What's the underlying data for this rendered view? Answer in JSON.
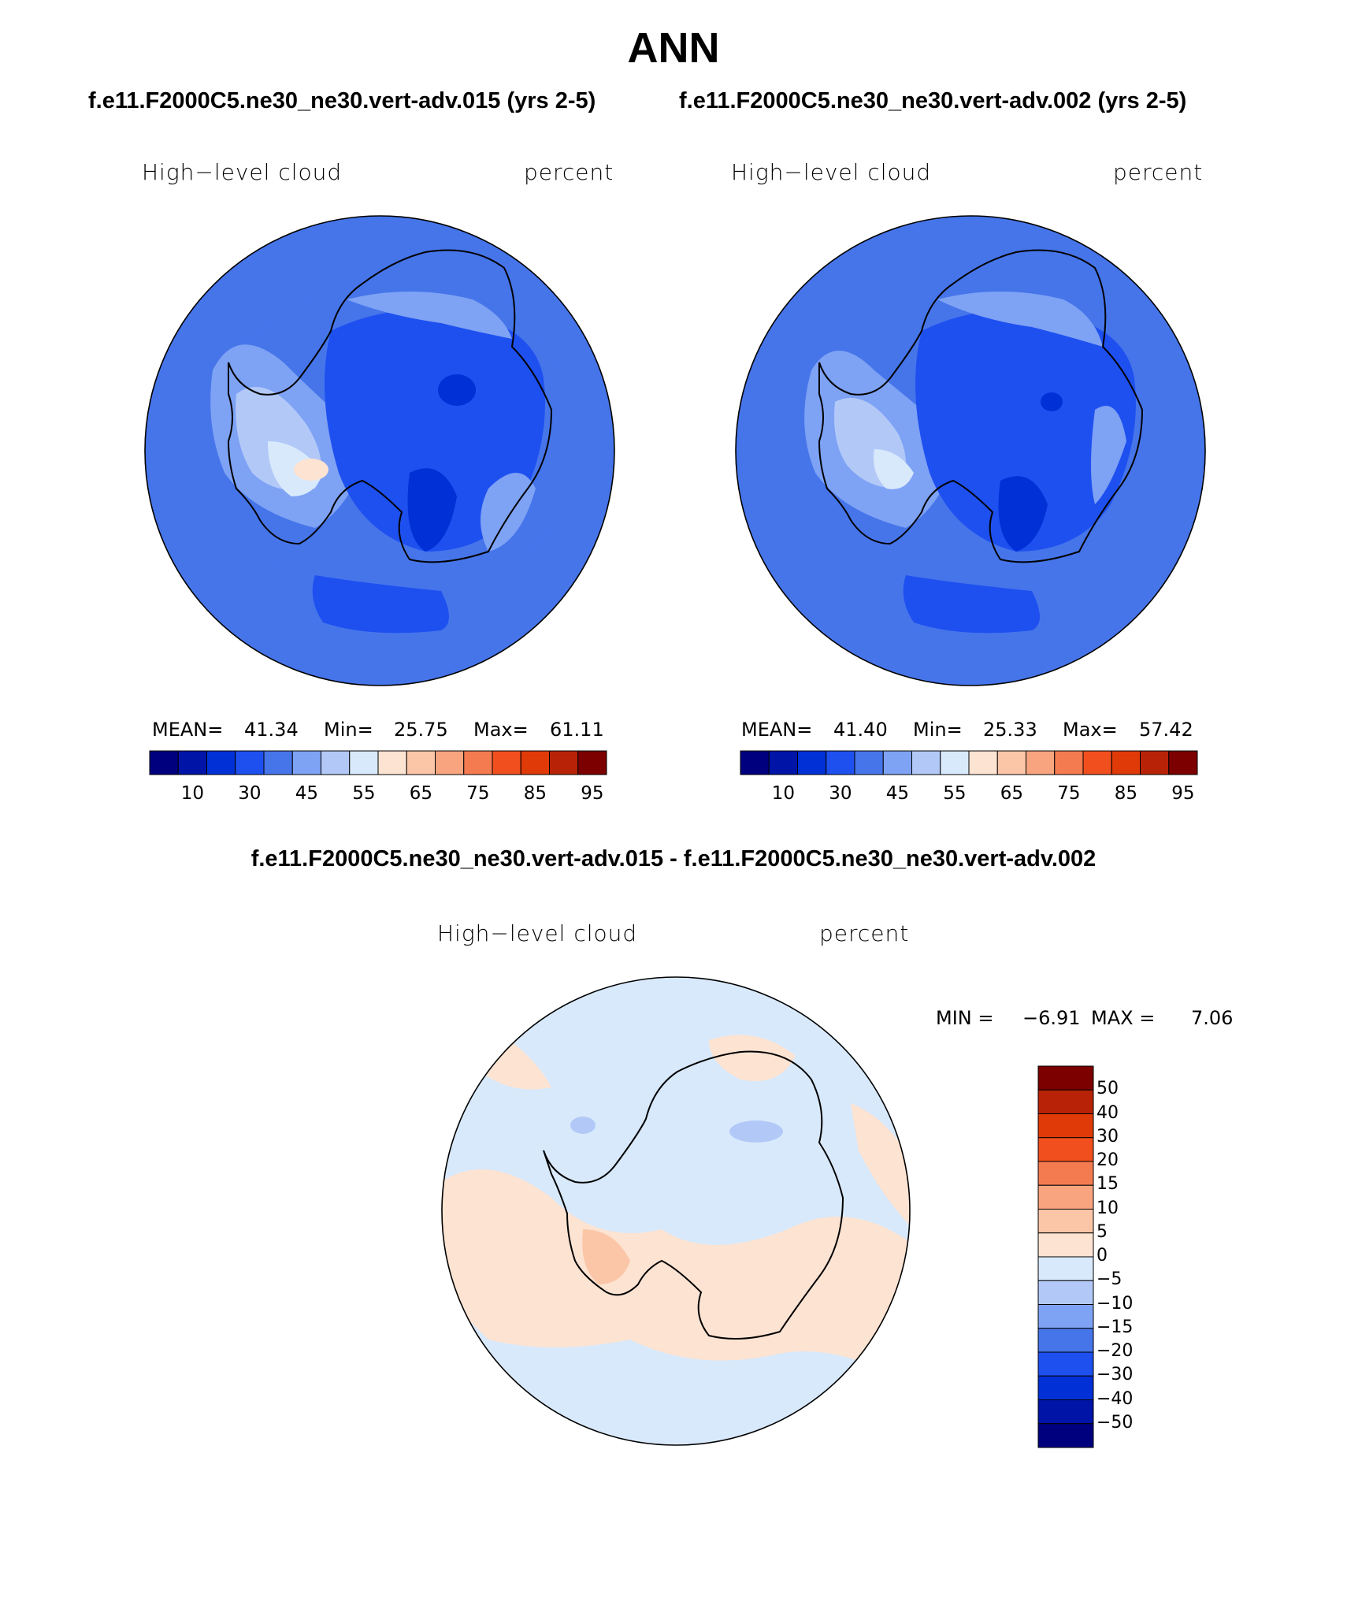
{
  "title": "ANN",
  "panels": [
    {
      "case_title": "f.e11.F2000C5.ne30_ne30.vert-adv.015 (yrs 2-5)",
      "variable": "High−level cloud",
      "units": "percent",
      "stats": {
        "mean_label": "MEAN=",
        "mean": "41.34",
        "min_label": "Min=",
        "min": "25.75",
        "max_label": "Max=",
        "max": "61.11"
      },
      "colorbar": {
        "colors": [
          "#00007f",
          "#0014a8",
          "#0030d6",
          "#1e50f0",
          "#4675ea",
          "#7ea2f4",
          "#b2c9f8",
          "#d8e9fb",
          "#fde3d2",
          "#fbc6a8",
          "#f8a47e",
          "#f47b50",
          "#f24f1e",
          "#e03a09",
          "#b82308",
          "#7c0000"
        ],
        "tick_labels": [
          "10",
          "30",
          "45",
          "55",
          "65",
          "75",
          "85",
          "95"
        ]
      }
    },
    {
      "case_title": "f.e11.F2000C5.ne30_ne30.vert-adv.002 (yrs 2-5)",
      "variable": "High−level cloud",
      "units": "percent",
      "stats": {
        "mean_label": "MEAN=",
        "mean": "41.40",
        "min_label": "Min=",
        "min": "25.33",
        "max_label": "Max=",
        "max": "57.42"
      },
      "colorbar": {
        "colors": [
          "#00007f",
          "#0014a8",
          "#0030d6",
          "#1e50f0",
          "#4675ea",
          "#7ea2f4",
          "#b2c9f8",
          "#d8e9fb",
          "#fde3d2",
          "#fbc6a8",
          "#f8a47e",
          "#f47b50",
          "#f24f1e",
          "#e03a09",
          "#b82308",
          "#7c0000"
        ],
        "tick_labels": [
          "10",
          "30",
          "45",
          "55",
          "65",
          "75",
          "85",
          "95"
        ]
      }
    }
  ],
  "difference": {
    "title": "f.e11.F2000C5.ne30_ne30.vert-adv.015 - f.e11.F2000C5.ne30_ne30.vert-adv.002",
    "variable": "High−level cloud",
    "units": "percent",
    "stats": {
      "min_label": "MIN =",
      "min": "−6.91",
      "max_label": "MAX =",
      "max": "7.06"
    },
    "colorbar": {
      "colors_top_to_bottom": [
        "#7c0000",
        "#b82308",
        "#e03a09",
        "#f24f1e",
        "#f47b50",
        "#f8a47e",
        "#fbc6a8",
        "#fde3d2",
        "#d8e9fb",
        "#b2c9f8",
        "#7ea2f4",
        "#4675ea",
        "#1e50f0",
        "#0030d6",
        "#0014a8",
        "#00007f"
      ],
      "tick_labels": [
        "50",
        "40",
        "30",
        "20",
        "15",
        "10",
        "5",
        "0",
        "−5",
        "−10",
        "−15",
        "−20",
        "−30",
        "−40",
        "−50"
      ]
    }
  },
  "colors": {
    "ocean_mid": "#4675ea",
    "deep_blue": "#1e50f0",
    "diff_positive": "#fde3d2",
    "diff_negative": "#d8e9fb"
  }
}
